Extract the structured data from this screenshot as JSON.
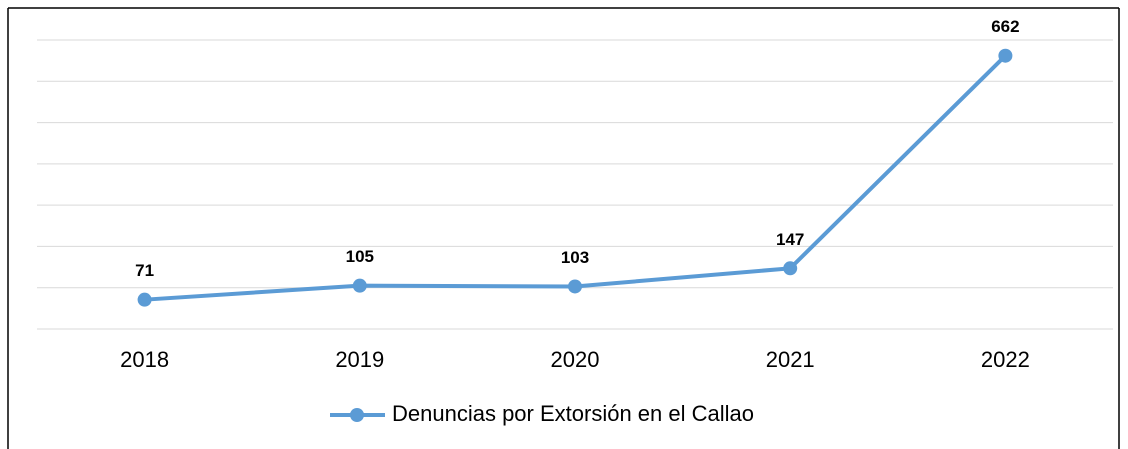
{
  "chart_data": {
    "type": "line",
    "categories": [
      "2018",
      "2019",
      "2020",
      "2021",
      "2022"
    ],
    "series": [
      {
        "name": "Denuncias por Extorsión en el Callao",
        "color": "#5b9bd5",
        "values": [
          71,
          105,
          103,
          147,
          662
        ]
      }
    ],
    "ylim": [
      0,
      700
    ],
    "yticks": [
      0,
      100,
      200,
      300,
      400,
      500,
      600,
      700
    ],
    "grid": true,
    "legend": "bottom"
  }
}
